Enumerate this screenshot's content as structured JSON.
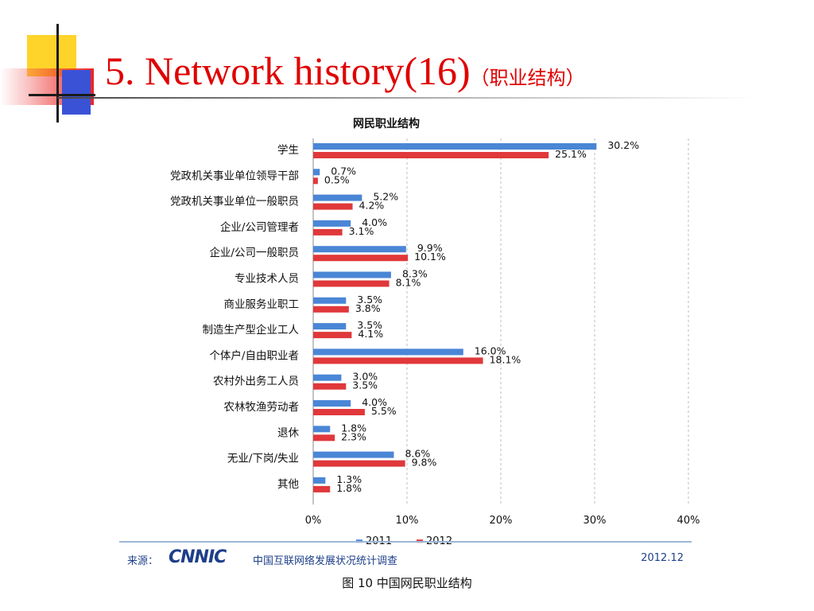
{
  "slide": {
    "title": "5. Network history(16)",
    "title_cn": "（职业结构）"
  },
  "source": {
    "label": "来源：",
    "logo_text": "CNNIC",
    "text": "中国互联网络发展状况统计调查",
    "date": "2012.12"
  },
  "figure_caption": "图  10  中国网民职业结构",
  "colors": {
    "series_2011": "#4a86d6",
    "series_2012": "#e0383b",
    "title": "#e00000"
  },
  "chart_data": {
    "type": "bar",
    "orientation": "horizontal",
    "title": "网民职业结构",
    "categories": [
      "学生",
      "党政机关事业单位领导干部",
      "党政机关事业单位一般职员",
      "企业/公司管理者",
      "企业/公司一般职员",
      "专业技术人员",
      "商业服务业职工",
      "制造生产型企业工人",
      "个体户/自由职业者",
      "农村外出务工人员",
      "农林牧渔劳动者",
      "退休",
      "无业/下岗/失业",
      "其他"
    ],
    "series": [
      {
        "name": "2011",
        "values": [
          30.2,
          0.7,
          5.2,
          4.0,
          9.9,
          8.3,
          3.5,
          3.5,
          16.0,
          3.0,
          4.0,
          1.8,
          8.6,
          1.3
        ]
      },
      {
        "name": "2012",
        "values": [
          25.1,
          0.5,
          4.2,
          3.1,
          10.1,
          8.1,
          3.8,
          4.1,
          18.1,
          3.5,
          5.5,
          2.3,
          9.8,
          1.8
        ]
      }
    ],
    "value_labels": [
      [
        "30.2%",
        "0.7%",
        "5.2%",
        "4.0%",
        "9.9%",
        "8.3%",
        "3.5%",
        "3.5%",
        "16.0%",
        "3.0%",
        "4.0%",
        "1.8%",
        "8.6%",
        "1.3%"
      ],
      [
        "25.1%",
        "0.5%",
        "4.2%",
        "3.1%",
        "10.1%",
        "8.1%",
        "3.8%",
        "4.1%",
        "18.1%",
        "3.5%",
        "5.5%",
        "2.3%",
        "9.8%",
        "1.8%"
      ]
    ],
    "x_ticks": [
      "0%",
      "10%",
      "20%",
      "30%",
      "40%"
    ],
    "xlim": [
      0,
      40
    ],
    "grid": true,
    "legend_position": "bottom"
  }
}
